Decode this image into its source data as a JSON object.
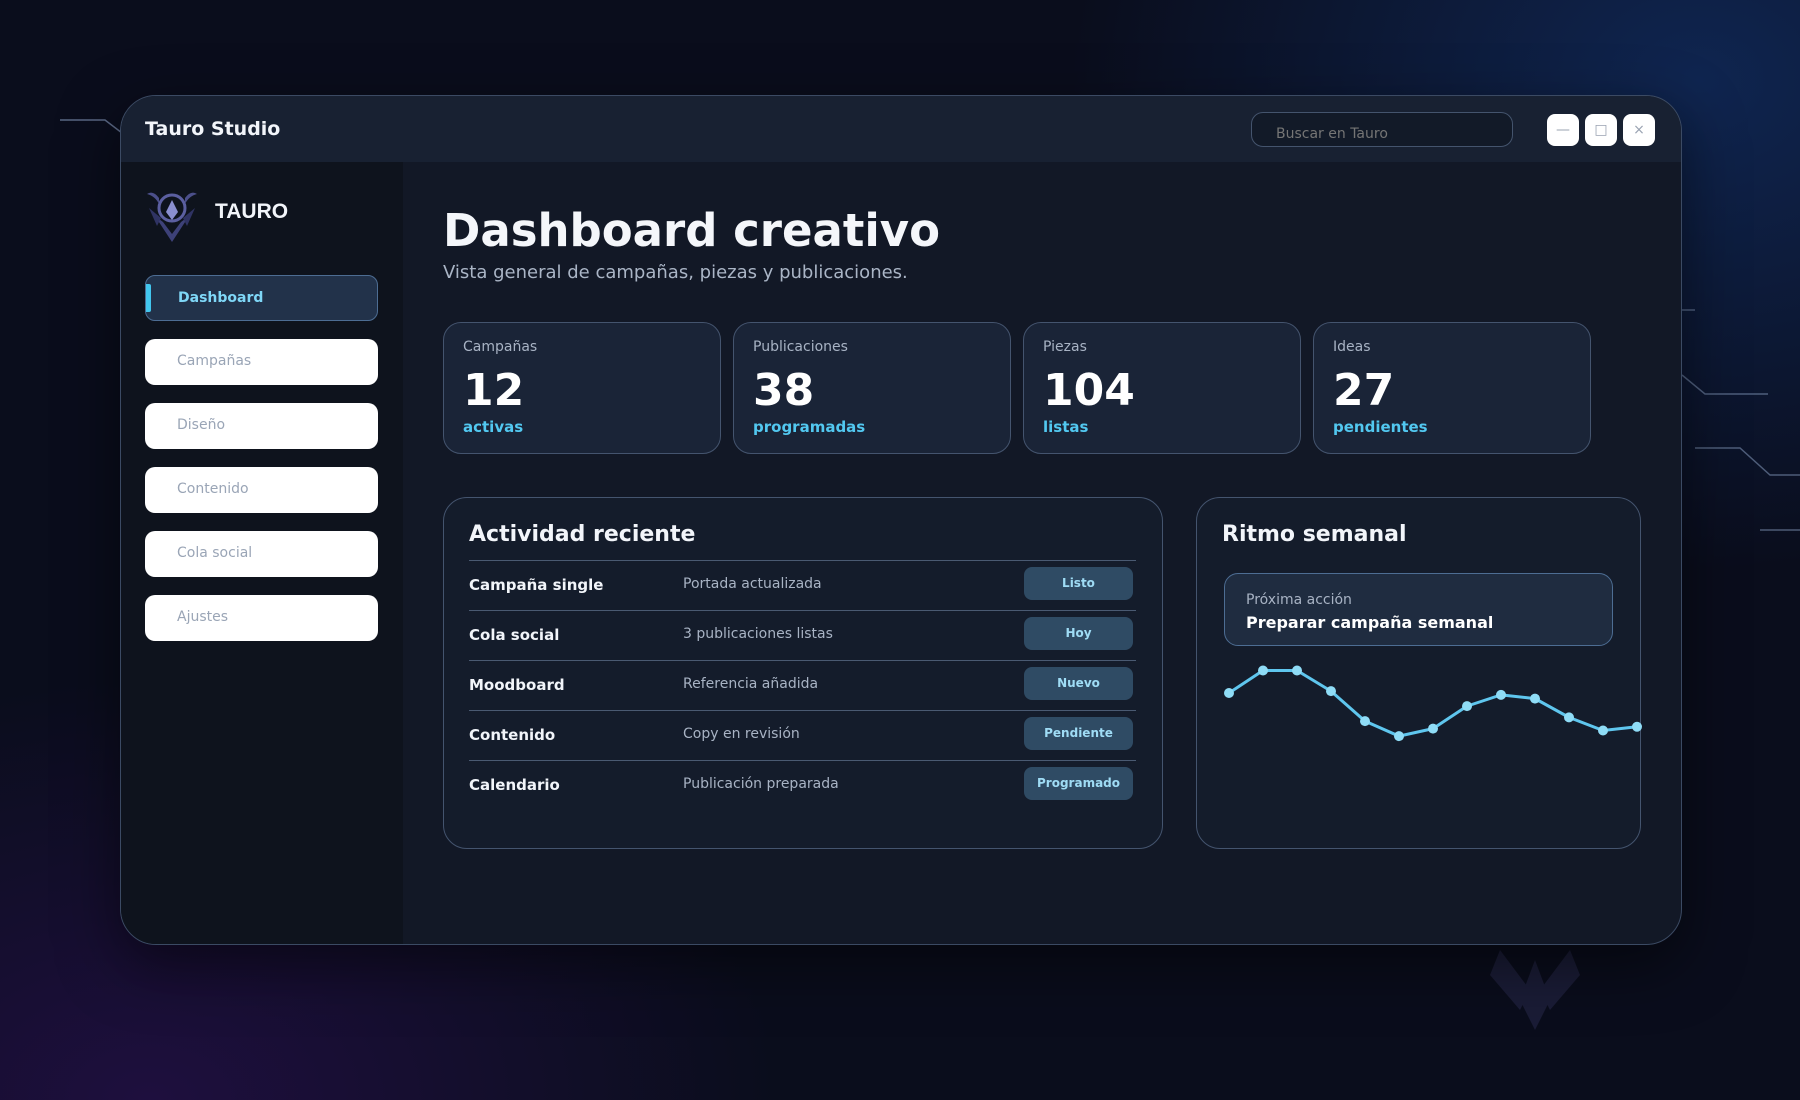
{
  "app": {
    "title": "Tauro Studio",
    "search_placeholder": "Buscar en Tauro"
  },
  "window_controls": {
    "minimize": "—",
    "maximize": "□",
    "close": "×"
  },
  "brand": {
    "name": "TAURO"
  },
  "sidebar": {
    "items": [
      {
        "label": "Dashboard",
        "active": true
      },
      {
        "label": "Campañas",
        "active": false
      },
      {
        "label": "Diseño",
        "active": false
      },
      {
        "label": "Contenido",
        "active": false
      },
      {
        "label": "Cola social",
        "active": false
      },
      {
        "label": "Ajustes",
        "active": false
      }
    ]
  },
  "header": {
    "title": "Dashboard creativo",
    "subtitle": "Vista general de campañas, piezas y publicaciones."
  },
  "stats": [
    {
      "label": "Campañas",
      "value": "12",
      "note": "activas"
    },
    {
      "label": "Publicaciones",
      "value": "38",
      "note": "programadas"
    },
    {
      "label": "Piezas",
      "value": "104",
      "note": "listas"
    },
    {
      "label": "Ideas",
      "value": "27",
      "note": "pendientes"
    }
  ],
  "activity": {
    "title": "Actividad reciente",
    "rows": [
      {
        "name": "Campaña single",
        "desc": "Portada actualizada",
        "badge": "Listo"
      },
      {
        "name": "Cola social",
        "desc": "3 publicaciones listas",
        "badge": "Hoy"
      },
      {
        "name": "Moodboard",
        "desc": "Referencia añadida",
        "badge": "Nuevo"
      },
      {
        "name": "Contenido",
        "desc": "Copy en revisión",
        "badge": "Pendiente"
      },
      {
        "name": "Calendario",
        "desc": "Publicación preparada",
        "badge": "Programado"
      }
    ]
  },
  "rhythm": {
    "title": "Ritmo semanal",
    "next_label": "Próxima acción",
    "next_value": "Preparar campaña semanal"
  },
  "colors": {
    "accent": "#52c8f0",
    "line": "#5fc6ee",
    "badge_bg": "#2f4b64"
  },
  "chart_data": {
    "type": "line",
    "series": [
      {
        "values": [
          5.6,
          6.8,
          6.8,
          5.7,
          4.1,
          3.3,
          3.7,
          4.9,
          5.5,
          5.3,
          4.3,
          3.6,
          3.8
        ]
      }
    ],
    "ylim": [
      0,
      8
    ],
    "grid": false
  }
}
